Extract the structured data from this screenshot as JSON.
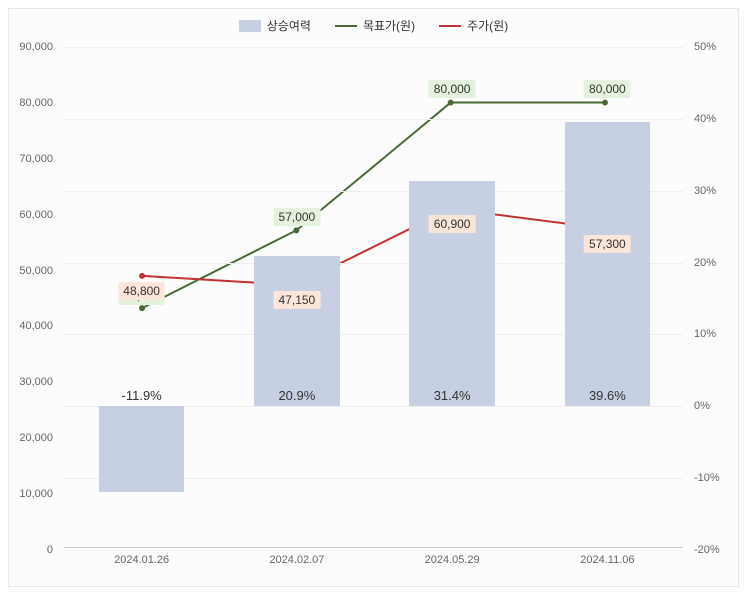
{
  "chart": {
    "legend": {
      "bar": "상승여력",
      "line1": "목표가(원)",
      "line2": "주가(원)"
    },
    "categories": [
      "2024.01.26",
      "2024.02.07",
      "2024.05.29",
      "2024.11.06"
    ],
    "bars": {
      "values_pct": [
        -11.9,
        20.9,
        31.4,
        39.6
      ],
      "labels": [
        "-11.9%",
        "20.9%",
        "31.4%",
        "39.6%"
      ],
      "color": "#c6d0e2",
      "width_ratio": 0.55
    },
    "target_price": {
      "values": [
        43000,
        57000,
        80000,
        80000
      ],
      "labels": [
        "43,000",
        "57,000",
        "80,000",
        "80,000"
      ],
      "color": "#4a6a35",
      "label_bg": "#e3f2dd",
      "line_width": 2
    },
    "stock_price": {
      "values": [
        48800,
        47150,
        60900,
        57300
      ],
      "labels": [
        "48,800",
        "47,150",
        "60,900",
        "57,300"
      ],
      "color": "#c43131",
      "label_bg": "#fce6da",
      "line_width": 2
    },
    "y_left": {
      "min": 0,
      "max": 90000,
      "ticks": [
        0,
        10000,
        20000,
        30000,
        40000,
        50000,
        60000,
        70000,
        80000,
        90000
      ],
      "labels": [
        "0",
        "10,000",
        "20,000",
        "30,000",
        "40,000",
        "50,000",
        "60,000",
        "70,000",
        "80,000",
        "90,000"
      ]
    },
    "y_right": {
      "min": -20,
      "max": 50,
      "ticks": [
        -20,
        -10,
        0,
        10,
        20,
        30,
        40,
        50
      ],
      "labels": [
        "-20%",
        "-10%",
        "0%",
        "10%",
        "20%",
        "30%",
        "40%",
        "50%"
      ]
    },
    "background_color": "#fcfcfc",
    "grid_color": "#eeeeee",
    "font_size_axis": 11,
    "font_size_legend": 12
  }
}
